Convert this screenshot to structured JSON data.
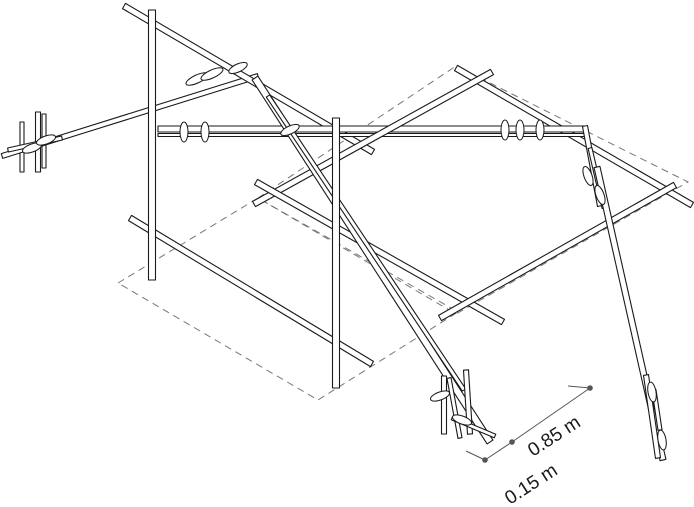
{
  "diagram": {
    "subject": "bamboo-scaffold-frame",
    "dimensions": {
      "dim_a": {
        "label": "0.85 m",
        "value": 0.85,
        "unit": "m"
      },
      "dim_b": {
        "label": "0.15 m",
        "value": 0.15,
        "unit": "m"
      }
    },
    "colors": {
      "line": "#1a1a1a",
      "footprint": "#777777",
      "dimension": "#555555",
      "background": "#ffffff"
    }
  }
}
